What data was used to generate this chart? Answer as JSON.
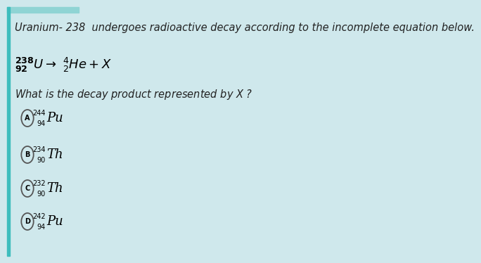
{
  "background_color": "#cfe8ec",
  "title_line": "Uranium- 238  undergoes radioactive decay according to the incomplete equation below.",
  "equation_parts": {
    "pre": "$\\mathbf{^{238}_{92}}$",
    "U": "$\\mathit{U}$",
    "arrow": "$\\rightarrow$",
    "He": "$\\mathbf{^{4}_{2}}$He",
    "plus_X": "+ $\\mathit{X}$"
  },
  "question": "What is the decay product represented by $\\mathit{X}$ ?",
  "options": [
    {
      "label": "A",
      "text_mass": "244",
      "text_atomic": "94",
      "text_elem": "Pu"
    },
    {
      "label": "B",
      "text_mass": "234",
      "text_atomic": "90",
      "text_elem": "Th"
    },
    {
      "label": "C",
      "text_mass": "232",
      "text_atomic": "90",
      "text_elem": "Th"
    },
    {
      "label": "D",
      "text_mass": "242",
      "text_atomic": "94",
      "text_elem": "Pu"
    }
  ],
  "left_bar_color": "#3dbdbd",
  "top_bar_color": "#8fd4d4",
  "circle_edge_color": "#555555",
  "title_fontsize": 10.5,
  "eq_fontsize": 13,
  "question_fontsize": 10.5,
  "option_label_fontsize": 7,
  "option_elem_fontsize": 13,
  "option_script_fontsize": 7
}
